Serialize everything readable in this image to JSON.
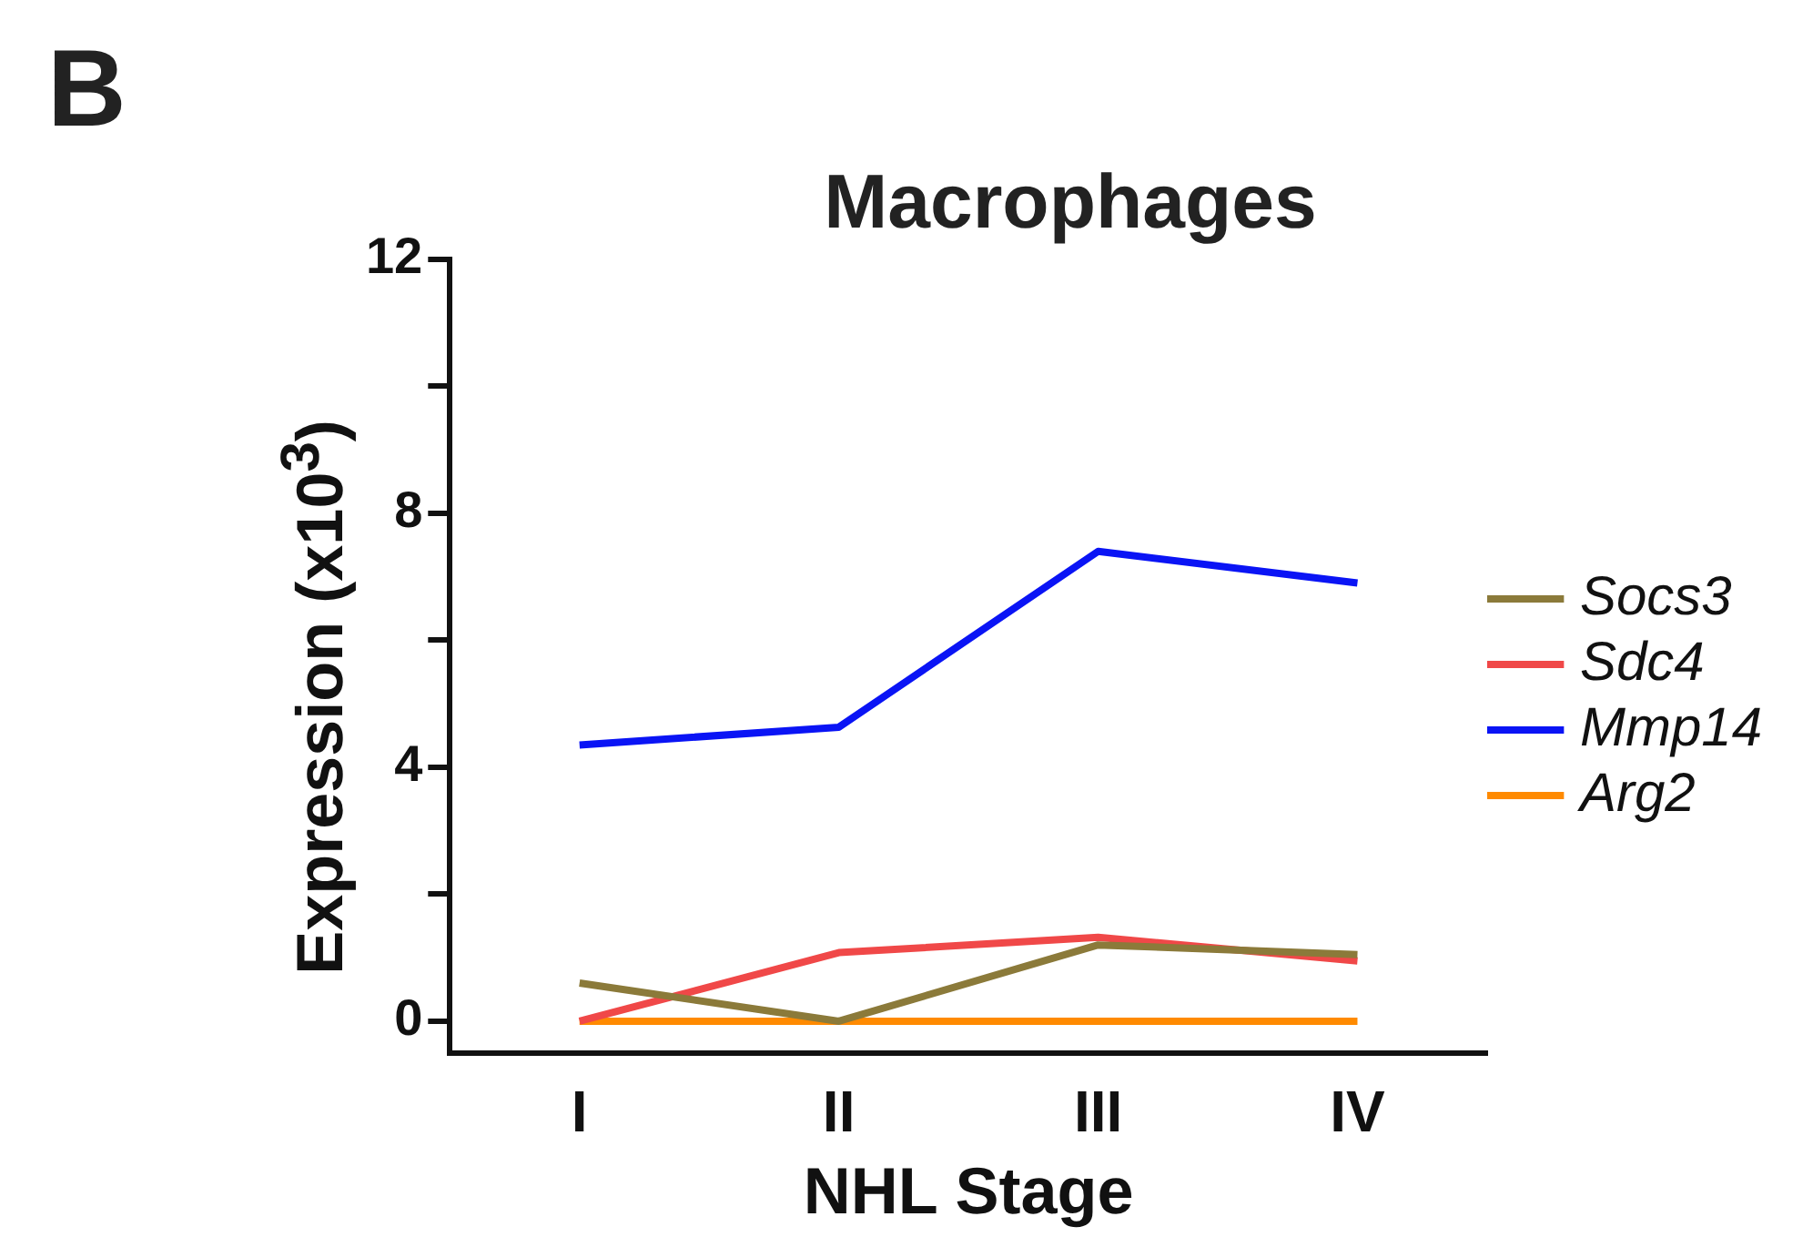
{
  "chart_data": {
    "type": "line",
    "title": "Macrophages",
    "xlabel": "NHL Stage",
    "ylabel": "Expression (x10$^{3}$)",
    "annotations": [
      "B"
    ],
    "categories": [
      "I",
      "II",
      "III",
      "IV"
    ],
    "series": [
      {
        "name": "Socs3",
        "color": "#8b7a3a",
        "values": [
          0.6,
          0,
          1.2,
          1.05
        ]
      },
      {
        "name": "Sdc4",
        "color": "#f04848",
        "values": [
          0,
          1.08,
          1.32,
          0.95
        ]
      },
      {
        "name": "Mmp14",
        "color": "#0a14f5",
        "values": [
          4.35,
          4.63,
          7.4,
          6.9
        ]
      },
      {
        "name": "Arg2",
        "color": "#ff8a00",
        "values": [
          0,
          0,
          0,
          0
        ]
      }
    ],
    "ylim": [
      -0.5,
      12
    ],
    "yticks": [
      0,
      {
        "value": 2,
        "label": null
      },
      4,
      {
        "value": 6,
        "label": null
      },
      8,
      {
        "value": 10,
        "label": null
      },
      12
    ],
    "grid": false,
    "legend": "right",
    "marker": "none",
    "line_style": "solid"
  }
}
